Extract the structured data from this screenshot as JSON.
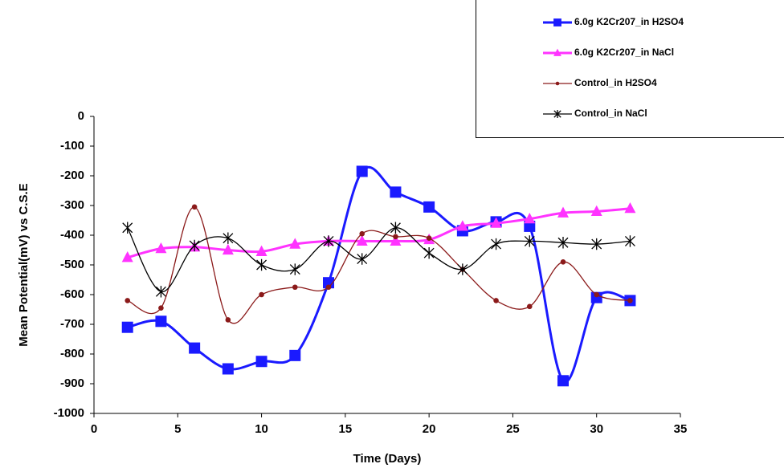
{
  "chart_data": {
    "type": "line",
    "x_label": "Time (Days)",
    "y_label": "Mean  Potential(mV) vs C.S.E",
    "x": [
      2,
      4,
      6,
      8,
      10,
      12,
      14,
      16,
      18,
      20,
      22,
      24,
      26,
      28,
      30,
      32
    ],
    "series": [
      {
        "name": "6.0g K2Cr207_in H2SO4",
        "color": "#1a1aff",
        "marker": "square",
        "values": [
          -710,
          -690,
          -780,
          -850,
          -825,
          -805,
          -560,
          -185,
          -255,
          -305,
          -385,
          -355,
          -370,
          -890,
          -610,
          -620
        ]
      },
      {
        "name": "6.0g K2Cr207_in NaCl",
        "color": "#ff33ff",
        "marker": "triangle",
        "values": [
          -475,
          -445,
          -440,
          -450,
          -455,
          -430,
          -420,
          -420,
          -420,
          -415,
          -370,
          -360,
          -345,
          -325,
          -320,
          -310
        ]
      },
      {
        "name": "Control_in H2SO4",
        "color": "#8b1a1a",
        "marker": "circle",
        "values": [
          -620,
          -645,
          -305,
          -685,
          -600,
          -575,
          -575,
          -395,
          -405,
          -410,
          -515,
          -620,
          -640,
          -490,
          -600,
          -620
        ]
      },
      {
        "name": "Control_in NaCl",
        "color": "#000000",
        "marker": "star",
        "values": [
          -375,
          -590,
          -435,
          -410,
          -500,
          -515,
          -420,
          -480,
          -375,
          -460,
          -515,
          -430,
          -420,
          -425,
          -430,
          -420
        ]
      }
    ],
    "xlim": [
      0,
      35
    ],
    "xticks": [
      0,
      5,
      10,
      15,
      20,
      25,
      30,
      35
    ],
    "ylim": [
      -1000,
      0
    ],
    "yticks": [
      0,
      -100,
      -200,
      -300,
      -400,
      -500,
      -600,
      -700,
      -800,
      -900,
      -1000
    ]
  }
}
